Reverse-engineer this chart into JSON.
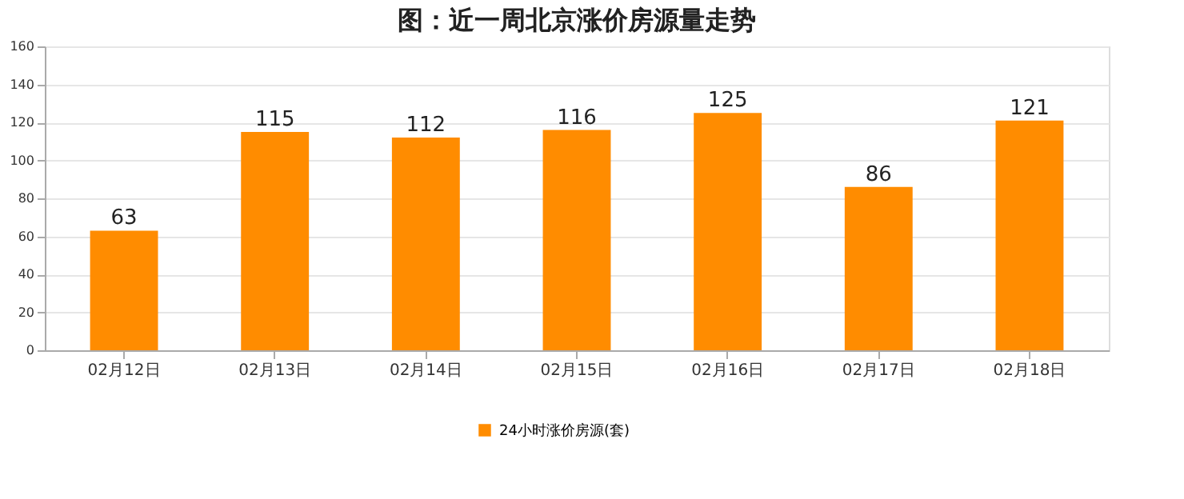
{
  "chart_data": {
    "type": "bar",
    "title": "图：近一周北京涨价房源量走势",
    "categories": [
      "02月12日",
      "02月13日",
      "02月14日",
      "02月15日",
      "02月16日",
      "02月17日",
      "02月18日"
    ],
    "series": [
      {
        "name": "24小时涨价房源(套)",
        "color": "#ff8c00",
        "values": [
          63,
          115,
          112,
          116,
          125,
          86,
          121
        ]
      }
    ],
    "ylim": [
      0,
      160
    ],
    "yticks": [
      0,
      20,
      40,
      60,
      80,
      100,
      120,
      140,
      160
    ],
    "grid": "y",
    "legend": "bottom",
    "data_labels": true
  }
}
